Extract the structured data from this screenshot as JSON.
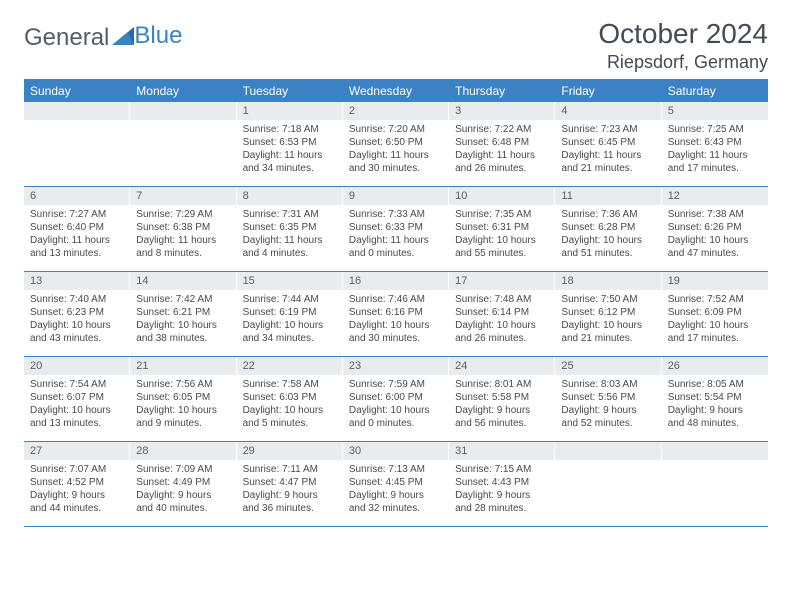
{
  "brand": {
    "part1": "General",
    "part2": "Blue"
  },
  "title": "October 2024",
  "location": "Riepsdorf, Germany",
  "colors": {
    "header_bg": "#3b82c4",
    "daynum_bg": "#e9ecef",
    "text": "#4a4a4a",
    "rule": "#3b82c4"
  },
  "dayNames": [
    "Sunday",
    "Monday",
    "Tuesday",
    "Wednesday",
    "Thursday",
    "Friday",
    "Saturday"
  ],
  "weeks": [
    [
      null,
      null,
      {
        "n": "1",
        "sr": "Sunrise: 7:18 AM",
        "ss": "Sunset: 6:53 PM",
        "dl": "Daylight: 11 hours and 34 minutes."
      },
      {
        "n": "2",
        "sr": "Sunrise: 7:20 AM",
        "ss": "Sunset: 6:50 PM",
        "dl": "Daylight: 11 hours and 30 minutes."
      },
      {
        "n": "3",
        "sr": "Sunrise: 7:22 AM",
        "ss": "Sunset: 6:48 PM",
        "dl": "Daylight: 11 hours and 26 minutes."
      },
      {
        "n": "4",
        "sr": "Sunrise: 7:23 AM",
        "ss": "Sunset: 6:45 PM",
        "dl": "Daylight: 11 hours and 21 minutes."
      },
      {
        "n": "5",
        "sr": "Sunrise: 7:25 AM",
        "ss": "Sunset: 6:43 PM",
        "dl": "Daylight: 11 hours and 17 minutes."
      }
    ],
    [
      {
        "n": "6",
        "sr": "Sunrise: 7:27 AM",
        "ss": "Sunset: 6:40 PM",
        "dl": "Daylight: 11 hours and 13 minutes."
      },
      {
        "n": "7",
        "sr": "Sunrise: 7:29 AM",
        "ss": "Sunset: 6:38 PM",
        "dl": "Daylight: 11 hours and 8 minutes."
      },
      {
        "n": "8",
        "sr": "Sunrise: 7:31 AM",
        "ss": "Sunset: 6:35 PM",
        "dl": "Daylight: 11 hours and 4 minutes."
      },
      {
        "n": "9",
        "sr": "Sunrise: 7:33 AM",
        "ss": "Sunset: 6:33 PM",
        "dl": "Daylight: 11 hours and 0 minutes."
      },
      {
        "n": "10",
        "sr": "Sunrise: 7:35 AM",
        "ss": "Sunset: 6:31 PM",
        "dl": "Daylight: 10 hours and 55 minutes."
      },
      {
        "n": "11",
        "sr": "Sunrise: 7:36 AM",
        "ss": "Sunset: 6:28 PM",
        "dl": "Daylight: 10 hours and 51 minutes."
      },
      {
        "n": "12",
        "sr": "Sunrise: 7:38 AM",
        "ss": "Sunset: 6:26 PM",
        "dl": "Daylight: 10 hours and 47 minutes."
      }
    ],
    [
      {
        "n": "13",
        "sr": "Sunrise: 7:40 AM",
        "ss": "Sunset: 6:23 PM",
        "dl": "Daylight: 10 hours and 43 minutes."
      },
      {
        "n": "14",
        "sr": "Sunrise: 7:42 AM",
        "ss": "Sunset: 6:21 PM",
        "dl": "Daylight: 10 hours and 38 minutes."
      },
      {
        "n": "15",
        "sr": "Sunrise: 7:44 AM",
        "ss": "Sunset: 6:19 PM",
        "dl": "Daylight: 10 hours and 34 minutes."
      },
      {
        "n": "16",
        "sr": "Sunrise: 7:46 AM",
        "ss": "Sunset: 6:16 PM",
        "dl": "Daylight: 10 hours and 30 minutes."
      },
      {
        "n": "17",
        "sr": "Sunrise: 7:48 AM",
        "ss": "Sunset: 6:14 PM",
        "dl": "Daylight: 10 hours and 26 minutes."
      },
      {
        "n": "18",
        "sr": "Sunrise: 7:50 AM",
        "ss": "Sunset: 6:12 PM",
        "dl": "Daylight: 10 hours and 21 minutes."
      },
      {
        "n": "19",
        "sr": "Sunrise: 7:52 AM",
        "ss": "Sunset: 6:09 PM",
        "dl": "Daylight: 10 hours and 17 minutes."
      }
    ],
    [
      {
        "n": "20",
        "sr": "Sunrise: 7:54 AM",
        "ss": "Sunset: 6:07 PM",
        "dl": "Daylight: 10 hours and 13 minutes."
      },
      {
        "n": "21",
        "sr": "Sunrise: 7:56 AM",
        "ss": "Sunset: 6:05 PM",
        "dl": "Daylight: 10 hours and 9 minutes."
      },
      {
        "n": "22",
        "sr": "Sunrise: 7:58 AM",
        "ss": "Sunset: 6:03 PM",
        "dl": "Daylight: 10 hours and 5 minutes."
      },
      {
        "n": "23",
        "sr": "Sunrise: 7:59 AM",
        "ss": "Sunset: 6:00 PM",
        "dl": "Daylight: 10 hours and 0 minutes."
      },
      {
        "n": "24",
        "sr": "Sunrise: 8:01 AM",
        "ss": "Sunset: 5:58 PM",
        "dl": "Daylight: 9 hours and 56 minutes."
      },
      {
        "n": "25",
        "sr": "Sunrise: 8:03 AM",
        "ss": "Sunset: 5:56 PM",
        "dl": "Daylight: 9 hours and 52 minutes."
      },
      {
        "n": "26",
        "sr": "Sunrise: 8:05 AM",
        "ss": "Sunset: 5:54 PM",
        "dl": "Daylight: 9 hours and 48 minutes."
      }
    ],
    [
      {
        "n": "27",
        "sr": "Sunrise: 7:07 AM",
        "ss": "Sunset: 4:52 PM",
        "dl": "Daylight: 9 hours and 44 minutes."
      },
      {
        "n": "28",
        "sr": "Sunrise: 7:09 AM",
        "ss": "Sunset: 4:49 PM",
        "dl": "Daylight: 9 hours and 40 minutes."
      },
      {
        "n": "29",
        "sr": "Sunrise: 7:11 AM",
        "ss": "Sunset: 4:47 PM",
        "dl": "Daylight: 9 hours and 36 minutes."
      },
      {
        "n": "30",
        "sr": "Sunrise: 7:13 AM",
        "ss": "Sunset: 4:45 PM",
        "dl": "Daylight: 9 hours and 32 minutes."
      },
      {
        "n": "31",
        "sr": "Sunrise: 7:15 AM",
        "ss": "Sunset: 4:43 PM",
        "dl": "Daylight: 9 hours and 28 minutes."
      },
      null,
      null
    ]
  ]
}
